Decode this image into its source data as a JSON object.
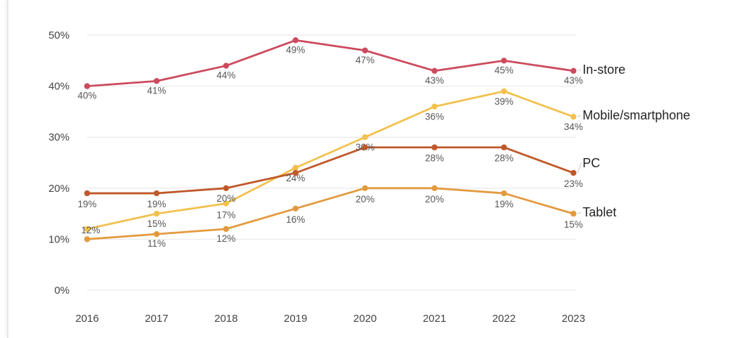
{
  "chart_data": {
    "type": "line",
    "x": [
      "2016",
      "2017",
      "2018",
      "2019",
      "2020",
      "2021",
      "2022",
      "2023"
    ],
    "ylim": [
      0,
      50
    ],
    "yticks": [
      "0%",
      "10%",
      "20%",
      "30%",
      "40%",
      "50%"
    ],
    "grid": "horizontal",
    "legend": "direct labels at right end of lines",
    "series": [
      {
        "name": "In-store",
        "color": "#cc4a5e",
        "values": [
          40,
          41,
          44,
          49,
          47,
          43,
          45,
          43
        ],
        "labels": [
          "40%",
          "41%",
          "44%",
          "49%",
          "47%",
          "43%",
          "45%",
          "43%"
        ]
      },
      {
        "name": "Mobile/smartphone",
        "color": "#f2c14e",
        "values": [
          12,
          15,
          17,
          24,
          30,
          36,
          39,
          34
        ],
        "labels": [
          "12%",
          "15%",
          "17%",
          "24%",
          "30%",
          "36%",
          "39%",
          "34%"
        ]
      },
      {
        "name": "PC",
        "color": "#c0582a",
        "values": [
          19,
          19,
          20,
          23,
          28,
          28,
          28,
          23
        ],
        "labels": [
          "19%",
          "19%",
          "20%",
          "",
          "",
          "28%",
          "28%",
          "23%"
        ]
      },
      {
        "name": "Tablet",
        "color": "#e39a3e",
        "values": [
          10,
          11,
          12,
          16,
          20,
          20,
          19,
          15
        ],
        "labels": [
          "",
          "11%",
          "12%",
          "16%",
          "20%",
          "20%",
          "19%",
          "15%"
        ]
      }
    ]
  }
}
